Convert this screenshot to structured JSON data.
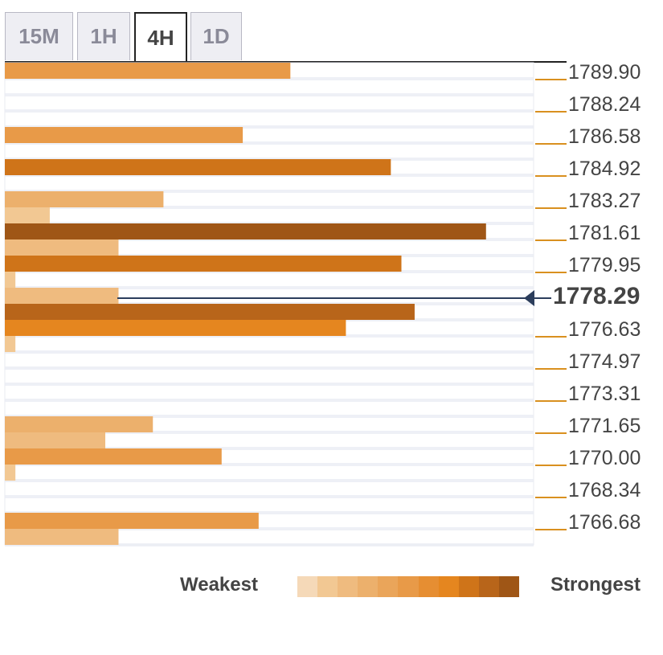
{
  "tabs": [
    {
      "label": "15M",
      "active": false
    },
    {
      "label": "1H",
      "active": false
    },
    {
      "label": "4H",
      "active": true
    },
    {
      "label": "1D",
      "active": false
    }
  ],
  "chart_data": {
    "type": "bar",
    "orientation": "horizontal",
    "price_levels": [
      "1789.90",
      "1788.24",
      "1786.58",
      "1784.92",
      "1783.27",
      "1781.61",
      "1779.95",
      "1778.29",
      "1776.63",
      "1774.97",
      "1773.31",
      "1771.65",
      "1770.00",
      "1768.34",
      "1766.68"
    ],
    "current_price": "1778.29",
    "scale_max": 10,
    "rows": [
      {
        "strength": 5.4
      },
      {
        "strength": 0
      },
      {
        "strength": 0
      },
      {
        "strength": 0
      },
      {
        "strength": 4.5
      },
      {
        "strength": 0
      },
      {
        "strength": 7.3
      },
      {
        "strength": 0
      },
      {
        "strength": 3.0
      },
      {
        "strength": 0.85
      },
      {
        "strength": 9.1
      },
      {
        "strength": 2.15
      },
      {
        "strength": 7.5
      },
      {
        "strength": 0.2
      },
      {
        "strength": 2.15
      },
      {
        "strength": 7.75
      },
      {
        "strength": 6.45
      },
      {
        "strength": 0.2
      },
      {
        "strength": 0
      },
      {
        "strength": 0
      },
      {
        "strength": 0
      },
      {
        "strength": 0
      },
      {
        "strength": 2.8
      },
      {
        "strength": 1.9
      },
      {
        "strength": 4.1
      },
      {
        "strength": 0.2
      },
      {
        "strength": 0
      },
      {
        "strength": 0
      },
      {
        "strength": 4.8
      },
      {
        "strength": 2.15
      }
    ],
    "colors": [
      "#f5d9b8",
      "#f2c893",
      "#efbb7f",
      "#ecb06c",
      "#eaa55a",
      "#e89a48",
      "#e68e32",
      "#e5861f",
      "#cf7419",
      "#b8651a",
      "#9f5616"
    ],
    "row_colors": [
      5,
      0,
      0,
      0,
      5,
      0,
      8,
      0,
      3,
      1,
      10,
      2,
      8,
      1,
      2,
      9,
      7,
      1,
      0,
      0,
      0,
      0,
      3,
      2,
      5,
      1,
      0,
      0,
      5,
      2
    ],
    "legend": {
      "weakest": "Weakest",
      "strongest": "Strongest"
    }
  }
}
